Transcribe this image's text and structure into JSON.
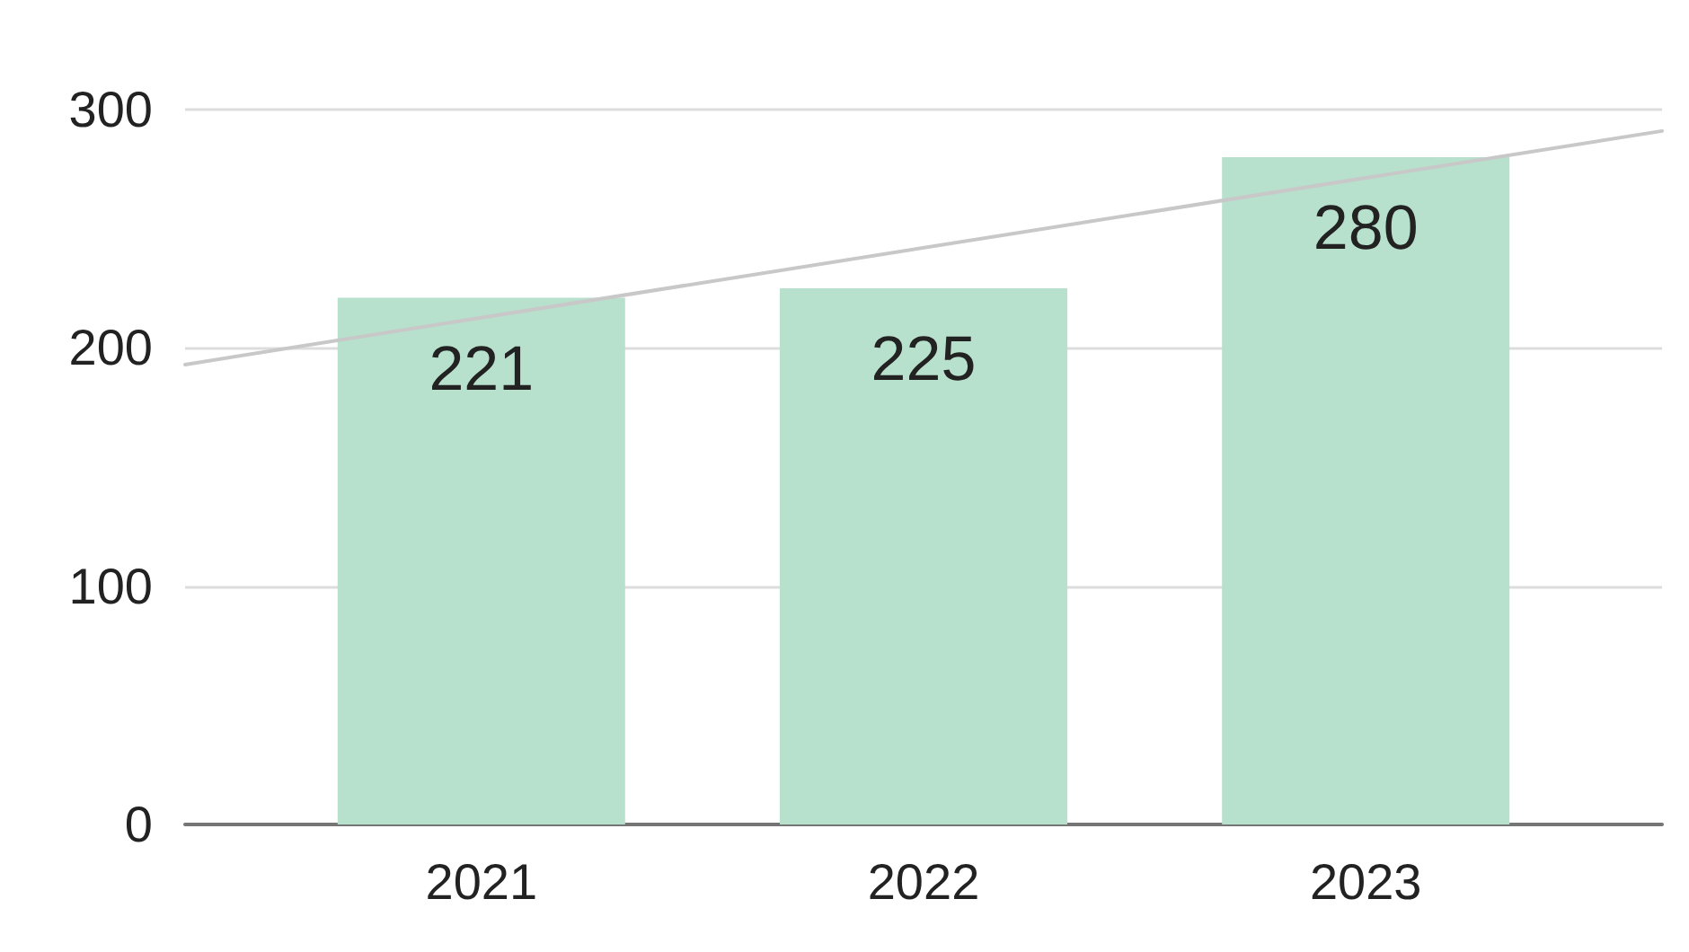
{
  "chart_data": {
    "type": "bar",
    "x": [
      2021,
      2022,
      2023
    ],
    "xlim": [
      2020.33,
      2023.67
    ],
    "xticks": [
      2021,
      2022,
      2023
    ],
    "ylim": [
      0,
      300
    ],
    "yticks": [
      0,
      100,
      200,
      300
    ],
    "grid": "y",
    "marker": "none",
    "series": [
      {
        "color": "#b7e1cd",
        "values": [
          221,
          225,
          280
        ],
        "value_labels": [
          "221",
          "225",
          "280"
        ]
      },
      {
        "type": "line",
        "x": [
          2020.33,
          2023.67
        ],
        "values": [
          193,
          291
        ],
        "color": "#c8c8c8"
      }
    ]
  }
}
